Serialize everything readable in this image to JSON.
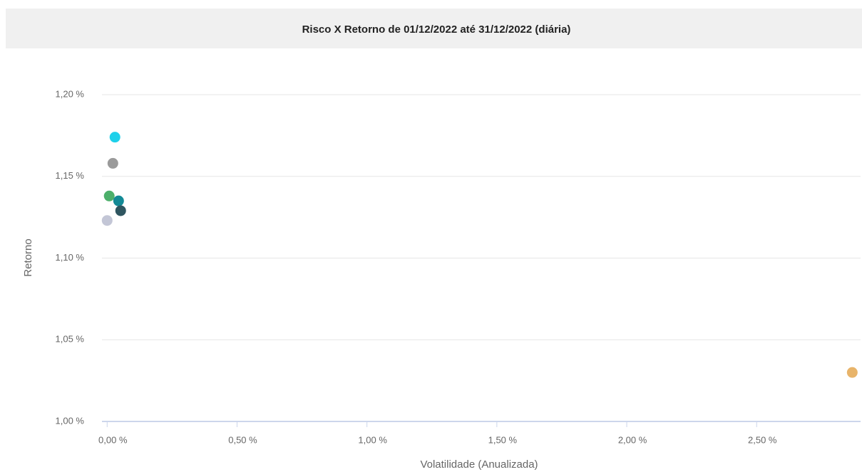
{
  "chart_data": {
    "type": "scatter",
    "title": "Risco X Retorno de 01/12/2022 até 31/12/2022 (diária)",
    "xlabel": "Volatilidade (Anualizada)",
    "ylabel": "Retorno",
    "x": [
      0.03,
      0.022,
      0.008,
      0.044,
      0.052,
      0.0,
      2.868
    ],
    "values": [
      1.174,
      1.158,
      1.138,
      1.135,
      1.129,
      1.123,
      1.03
    ],
    "colors": [
      "#1ed0ea",
      "#9a9a9a",
      "#4caf6a",
      "#138a96",
      "#2f5660",
      "#c3c6d6",
      "#e8b46a"
    ],
    "xlim": [
      -0.02,
      2.9
    ],
    "ylim": [
      1.0,
      1.2
    ],
    "xticks": [
      {
        "value": 0,
        "label": "0,00 %"
      },
      {
        "value": 0.5,
        "label": "0,50 %"
      },
      {
        "value": 1,
        "label": "1,00 %"
      },
      {
        "value": 1.5,
        "label": "1,50 %"
      },
      {
        "value": 2,
        "label": "2,00 %"
      },
      {
        "value": 2.5,
        "label": "2,50 %"
      }
    ],
    "yticks": [
      {
        "value": 1.0,
        "label": "1,00 %"
      },
      {
        "value": 1.05,
        "label": "1,05 %"
      },
      {
        "value": 1.1,
        "label": "1,10 %"
      },
      {
        "value": 1.15,
        "label": "1,15 %"
      },
      {
        "value": 1.2,
        "label": "1,20 %"
      }
    ],
    "grid": true
  }
}
